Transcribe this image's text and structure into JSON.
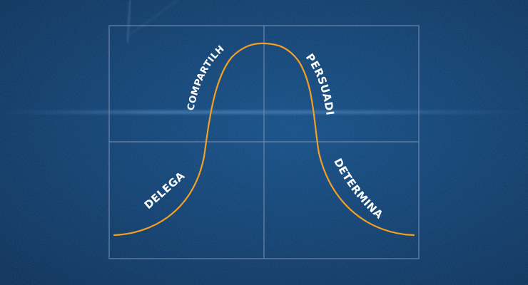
{
  "colors": {
    "background": "#0a3766",
    "background_dark": "#062a52",
    "grid": "#6f86a8",
    "curve": "#f2a025",
    "label_text": "#ffffff"
  },
  "diagram": {
    "type": "bell-curve-quadrants",
    "labels": {
      "q1": "DELEGAR",
      "q2": "COMPARTILHAR",
      "q3": "PERSUADIR",
      "q4": "DETERMINAR"
    }
  }
}
